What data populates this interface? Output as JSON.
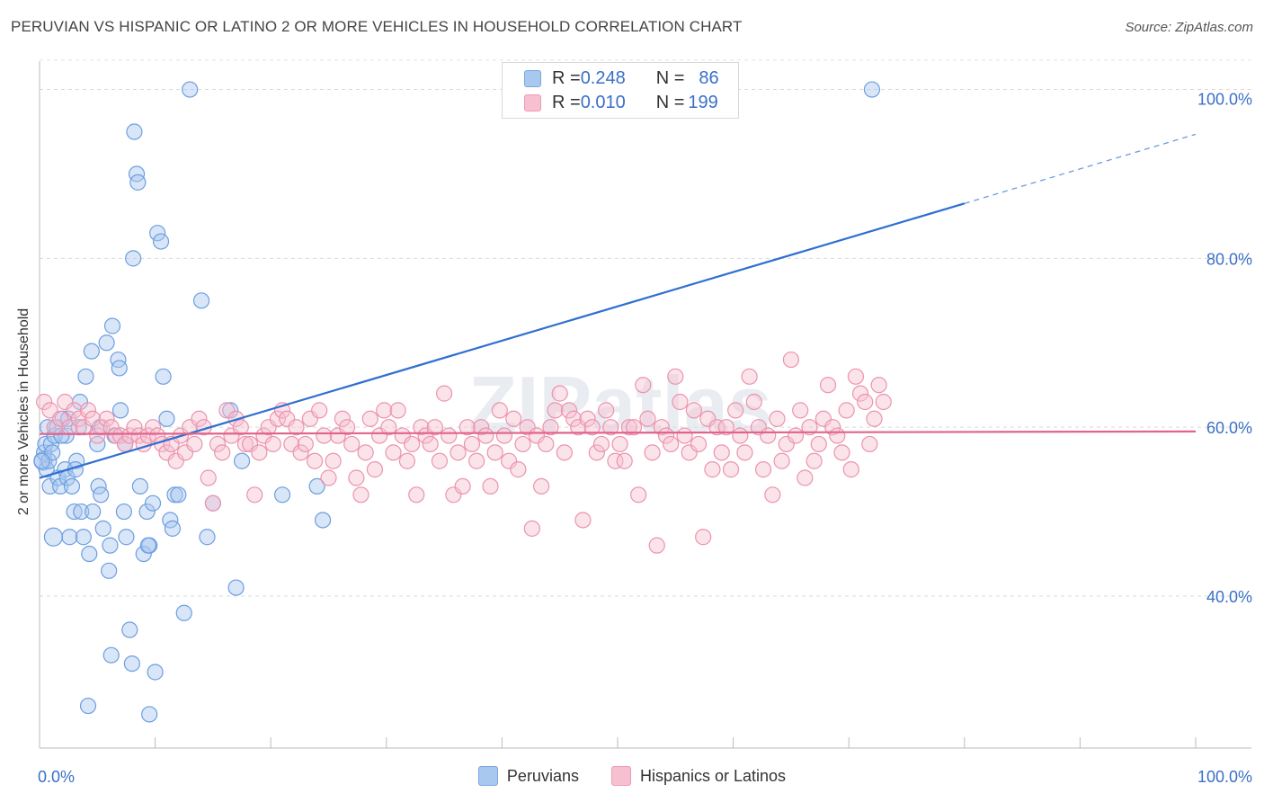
{
  "header": {
    "title": "PERUVIAN VS HISPANIC OR LATINO 2 OR MORE VEHICLES IN HOUSEHOLD CORRELATION CHART",
    "source": "Source: ZipAtlas.com"
  },
  "stats": [
    {
      "r_label": "R = ",
      "r_value": "0.248",
      "n_label": "N = ",
      "n_value": "86",
      "color": "#a9c8ef",
      "border": "#7aa6e0"
    },
    {
      "r_label": "R = ",
      "r_value": "0.010",
      "n_label": "N = ",
      "n_value": "199",
      "color": "#f7c0d0",
      "border": "#ef9ab4"
    }
  ],
  "legend": [
    {
      "label": "Peruvians",
      "color": "#a9c8ef",
      "border": "#7aa6e0"
    },
    {
      "label": "Hispanics or Latinos",
      "color": "#f7c0d0",
      "border": "#ef9ab4"
    }
  ],
  "watermark": "ZIPatlas",
  "chart_data": {
    "type": "scatter",
    "title": "PERUVIAN VS HISPANIC OR LATINO 2 OR MORE VEHICLES IN HOUSEHOLD CORRELATION CHART",
    "xlabel": "",
    "ylabel": "2 or more Vehicles in Household",
    "xlim": [
      0,
      100
    ],
    "ylim": [
      22,
      104
    ],
    "x_tick_labels": [
      "0.0%",
      "100.0%"
    ],
    "y_ticks": [
      40,
      60,
      80,
      100
    ],
    "y_tick_labels": [
      "40.0%",
      "60.0%",
      "80.0%",
      "100.0%"
    ],
    "series": [
      {
        "name": "Peruvians",
        "color": "#a9c8ef",
        "stroke": "#6d9ee0",
        "trend": {
          "x0": 0,
          "y0": 54,
          "x1": 80,
          "y1": 86.5,
          "dash_to_x": 100,
          "dash_to_y": 94.7,
          "color": "#2f6fd0"
        },
        "points": [
          [
            0.3,
            56
          ],
          [
            0.4,
            57
          ],
          [
            0.5,
            58
          ],
          [
            0.6,
            55
          ],
          [
            0.7,
            60
          ],
          [
            0.8,
            56
          ],
          [
            0.9,
            53
          ],
          [
            1.0,
            58
          ],
          [
            1.1,
            57
          ],
          [
            1.3,
            59
          ],
          [
            1.5,
            60
          ],
          [
            1.6,
            54
          ],
          [
            1.8,
            53
          ],
          [
            2.0,
            61
          ],
          [
            2.2,
            55
          ],
          [
            2.4,
            54
          ],
          [
            2.5,
            61
          ],
          [
            2.6,
            47
          ],
          [
            2.8,
            53
          ],
          [
            3.0,
            50
          ],
          [
            3.2,
            56
          ],
          [
            3.5,
            63
          ],
          [
            3.6,
            50
          ],
          [
            3.8,
            47
          ],
          [
            4.0,
            66
          ],
          [
            4.3,
            45
          ],
          [
            4.5,
            69
          ],
          [
            4.6,
            50
          ],
          [
            5.0,
            58
          ],
          [
            5.1,
            53
          ],
          [
            5.3,
            52
          ],
          [
            5.5,
            48
          ],
          [
            5.8,
            70
          ],
          [
            6.0,
            43
          ],
          [
            6.1,
            46
          ],
          [
            6.3,
            72
          ],
          [
            6.5,
            59
          ],
          [
            6.8,
            68
          ],
          [
            6.9,
            67
          ],
          [
            7.0,
            62
          ],
          [
            7.3,
            50
          ],
          [
            7.5,
            47
          ],
          [
            7.8,
            36
          ],
          [
            8.0,
            32
          ],
          [
            8.2,
            95
          ],
          [
            8.4,
            90
          ],
          [
            8.5,
            89
          ],
          [
            8.7,
            53
          ],
          [
            9.0,
            45
          ],
          [
            9.3,
            50
          ],
          [
            9.5,
            46
          ],
          [
            9.8,
            51
          ],
          [
            10.0,
            31
          ],
          [
            10.2,
            83
          ],
          [
            10.5,
            82
          ],
          [
            10.7,
            66
          ],
          [
            11.0,
            61
          ],
          [
            11.3,
            49
          ],
          [
            11.5,
            48
          ],
          [
            11.7,
            52
          ],
          [
            12.0,
            52
          ],
          [
            13.0,
            100
          ],
          [
            14.0,
            75
          ],
          [
            14.5,
            47
          ],
          [
            15.0,
            51
          ],
          [
            16.5,
            62
          ],
          [
            17.0,
            41
          ],
          [
            17.5,
            56
          ],
          [
            21.0,
            52
          ],
          [
            24.0,
            53
          ],
          [
            24.5,
            49
          ],
          [
            4.2,
            27
          ],
          [
            9.5,
            26
          ],
          [
            6.2,
            33
          ],
          [
            8.1,
            80
          ],
          [
            9.4,
            46
          ],
          [
            1.2,
            47
          ],
          [
            2.3,
            59
          ],
          [
            5.2,
            60
          ],
          [
            3.1,
            55
          ],
          [
            0.2,
            56
          ],
          [
            72.0,
            100
          ],
          [
            7.4,
            58
          ],
          [
            12.5,
            38
          ],
          [
            3.4,
            60
          ],
          [
            1.9,
            59
          ]
        ]
      },
      {
        "name": "Hispanics or Latinos",
        "color": "#f7c0d0",
        "stroke": "#ec93ae",
        "trend": {
          "x0": 0,
          "y0": 59.2,
          "x1": 100,
          "y1": 59.5,
          "color": "#e0648c"
        },
        "points": [
          [
            0.4,
            63
          ],
          [
            0.9,
            62
          ],
          [
            1.3,
            60
          ],
          [
            1.8,
            61
          ],
          [
            2.2,
            63
          ],
          [
            2.6,
            60
          ],
          [
            3.0,
            62
          ],
          [
            3.4,
            61
          ],
          [
            3.8,
            60
          ],
          [
            4.2,
            62
          ],
          [
            4.6,
            61
          ],
          [
            5.0,
            59
          ],
          [
            5.4,
            60
          ],
          [
            5.8,
            61
          ],
          [
            6.2,
            60
          ],
          [
            6.6,
            59
          ],
          [
            7.0,
            59
          ],
          [
            7.4,
            58
          ],
          [
            7.8,
            59
          ],
          [
            8.2,
            60
          ],
          [
            8.6,
            59
          ],
          [
            9.0,
            58
          ],
          [
            9.4,
            59
          ],
          [
            9.8,
            60
          ],
          [
            10.2,
            59
          ],
          [
            10.6,
            58
          ],
          [
            11.0,
            57
          ],
          [
            11.4,
            58
          ],
          [
            11.8,
            56
          ],
          [
            12.2,
            59
          ],
          [
            12.6,
            57
          ],
          [
            13.0,
            60
          ],
          [
            13.4,
            58
          ],
          [
            13.8,
            61
          ],
          [
            14.2,
            60
          ],
          [
            14.6,
            54
          ],
          [
            15.0,
            51
          ],
          [
            15.4,
            58
          ],
          [
            15.8,
            57
          ],
          [
            16.2,
            62
          ],
          [
            16.6,
            59
          ],
          [
            17.0,
            61
          ],
          [
            17.4,
            60
          ],
          [
            17.8,
            58
          ],
          [
            18.2,
            58
          ],
          [
            18.6,
            52
          ],
          [
            19.0,
            57
          ],
          [
            19.4,
            59
          ],
          [
            19.8,
            60
          ],
          [
            20.2,
            58
          ],
          [
            20.6,
            61
          ],
          [
            21.0,
            62
          ],
          [
            21.4,
            61
          ],
          [
            21.8,
            58
          ],
          [
            22.2,
            60
          ],
          [
            22.6,
            57
          ],
          [
            23.0,
            58
          ],
          [
            23.4,
            61
          ],
          [
            23.8,
            56
          ],
          [
            24.2,
            62
          ],
          [
            24.6,
            59
          ],
          [
            25.0,
            54
          ],
          [
            25.4,
            56
          ],
          [
            25.8,
            59
          ],
          [
            26.2,
            61
          ],
          [
            26.6,
            60
          ],
          [
            27.0,
            58
          ],
          [
            27.4,
            54
          ],
          [
            27.8,
            52
          ],
          [
            28.2,
            57
          ],
          [
            28.6,
            61
          ],
          [
            29.0,
            55
          ],
          [
            29.4,
            59
          ],
          [
            29.8,
            62
          ],
          [
            30.2,
            60
          ],
          [
            30.6,
            57
          ],
          [
            31.0,
            62
          ],
          [
            31.4,
            59
          ],
          [
            31.8,
            56
          ],
          [
            32.2,
            58
          ],
          [
            32.6,
            52
          ],
          [
            33.0,
            60
          ],
          [
            33.4,
            59
          ],
          [
            33.8,
            58
          ],
          [
            34.2,
            60
          ],
          [
            34.6,
            56
          ],
          [
            35.0,
            64
          ],
          [
            35.4,
            59
          ],
          [
            35.8,
            52
          ],
          [
            36.2,
            57
          ],
          [
            36.6,
            53
          ],
          [
            37.0,
            60
          ],
          [
            37.4,
            58
          ],
          [
            37.8,
            56
          ],
          [
            38.2,
            60
          ],
          [
            38.6,
            59
          ],
          [
            39.0,
            53
          ],
          [
            39.4,
            57
          ],
          [
            39.8,
            62
          ],
          [
            40.2,
            59
          ],
          [
            40.6,
            56
          ],
          [
            41.0,
            61
          ],
          [
            41.4,
            55
          ],
          [
            41.8,
            58
          ],
          [
            42.2,
            60
          ],
          [
            42.6,
            48
          ],
          [
            43.0,
            59
          ],
          [
            43.4,
            53
          ],
          [
            43.8,
            58
          ],
          [
            44.2,
            60
          ],
          [
            44.6,
            62
          ],
          [
            45.0,
            64
          ],
          [
            45.4,
            57
          ],
          [
            45.8,
            62
          ],
          [
            46.2,
            61
          ],
          [
            46.6,
            60
          ],
          [
            47.0,
            49
          ],
          [
            47.4,
            61
          ],
          [
            47.8,
            60
          ],
          [
            48.2,
            57
          ],
          [
            48.6,
            58
          ],
          [
            49.0,
            62
          ],
          [
            49.4,
            60
          ],
          [
            49.8,
            56
          ],
          [
            50.2,
            58
          ],
          [
            50.6,
            56
          ],
          [
            51.0,
            60
          ],
          [
            51.4,
            60
          ],
          [
            51.8,
            52
          ],
          [
            52.2,
            65
          ],
          [
            52.6,
            61
          ],
          [
            53.0,
            57
          ],
          [
            53.4,
            46
          ],
          [
            53.8,
            60
          ],
          [
            54.2,
            59
          ],
          [
            54.6,
            58
          ],
          [
            55.0,
            66
          ],
          [
            55.4,
            63
          ],
          [
            55.8,
            59
          ],
          [
            56.2,
            57
          ],
          [
            56.6,
            62
          ],
          [
            57.0,
            58
          ],
          [
            57.4,
            47
          ],
          [
            57.8,
            61
          ],
          [
            58.2,
            55
          ],
          [
            58.6,
            60
          ],
          [
            59.0,
            57
          ],
          [
            59.4,
            60
          ],
          [
            59.8,
            55
          ],
          [
            60.2,
            62
          ],
          [
            60.6,
            59
          ],
          [
            61.0,
            57
          ],
          [
            61.4,
            66
          ],
          [
            61.8,
            63
          ],
          [
            62.2,
            60
          ],
          [
            62.6,
            55
          ],
          [
            63.0,
            59
          ],
          [
            63.4,
            52
          ],
          [
            63.8,
            61
          ],
          [
            64.2,
            56
          ],
          [
            64.6,
            58
          ],
          [
            65.0,
            68
          ],
          [
            65.4,
            59
          ],
          [
            65.8,
            62
          ],
          [
            66.2,
            54
          ],
          [
            66.6,
            60
          ],
          [
            67.0,
            56
          ],
          [
            67.4,
            58
          ],
          [
            67.8,
            61
          ],
          [
            68.2,
            65
          ],
          [
            68.6,
            60
          ],
          [
            69.0,
            59
          ],
          [
            69.4,
            57
          ],
          [
            69.8,
            62
          ],
          [
            70.2,
            55
          ],
          [
            70.6,
            66
          ],
          [
            71.0,
            64
          ],
          [
            71.4,
            63
          ],
          [
            71.8,
            58
          ],
          [
            72.2,
            61
          ],
          [
            72.6,
            65
          ],
          [
            73.0,
            63
          ]
        ]
      }
    ]
  }
}
